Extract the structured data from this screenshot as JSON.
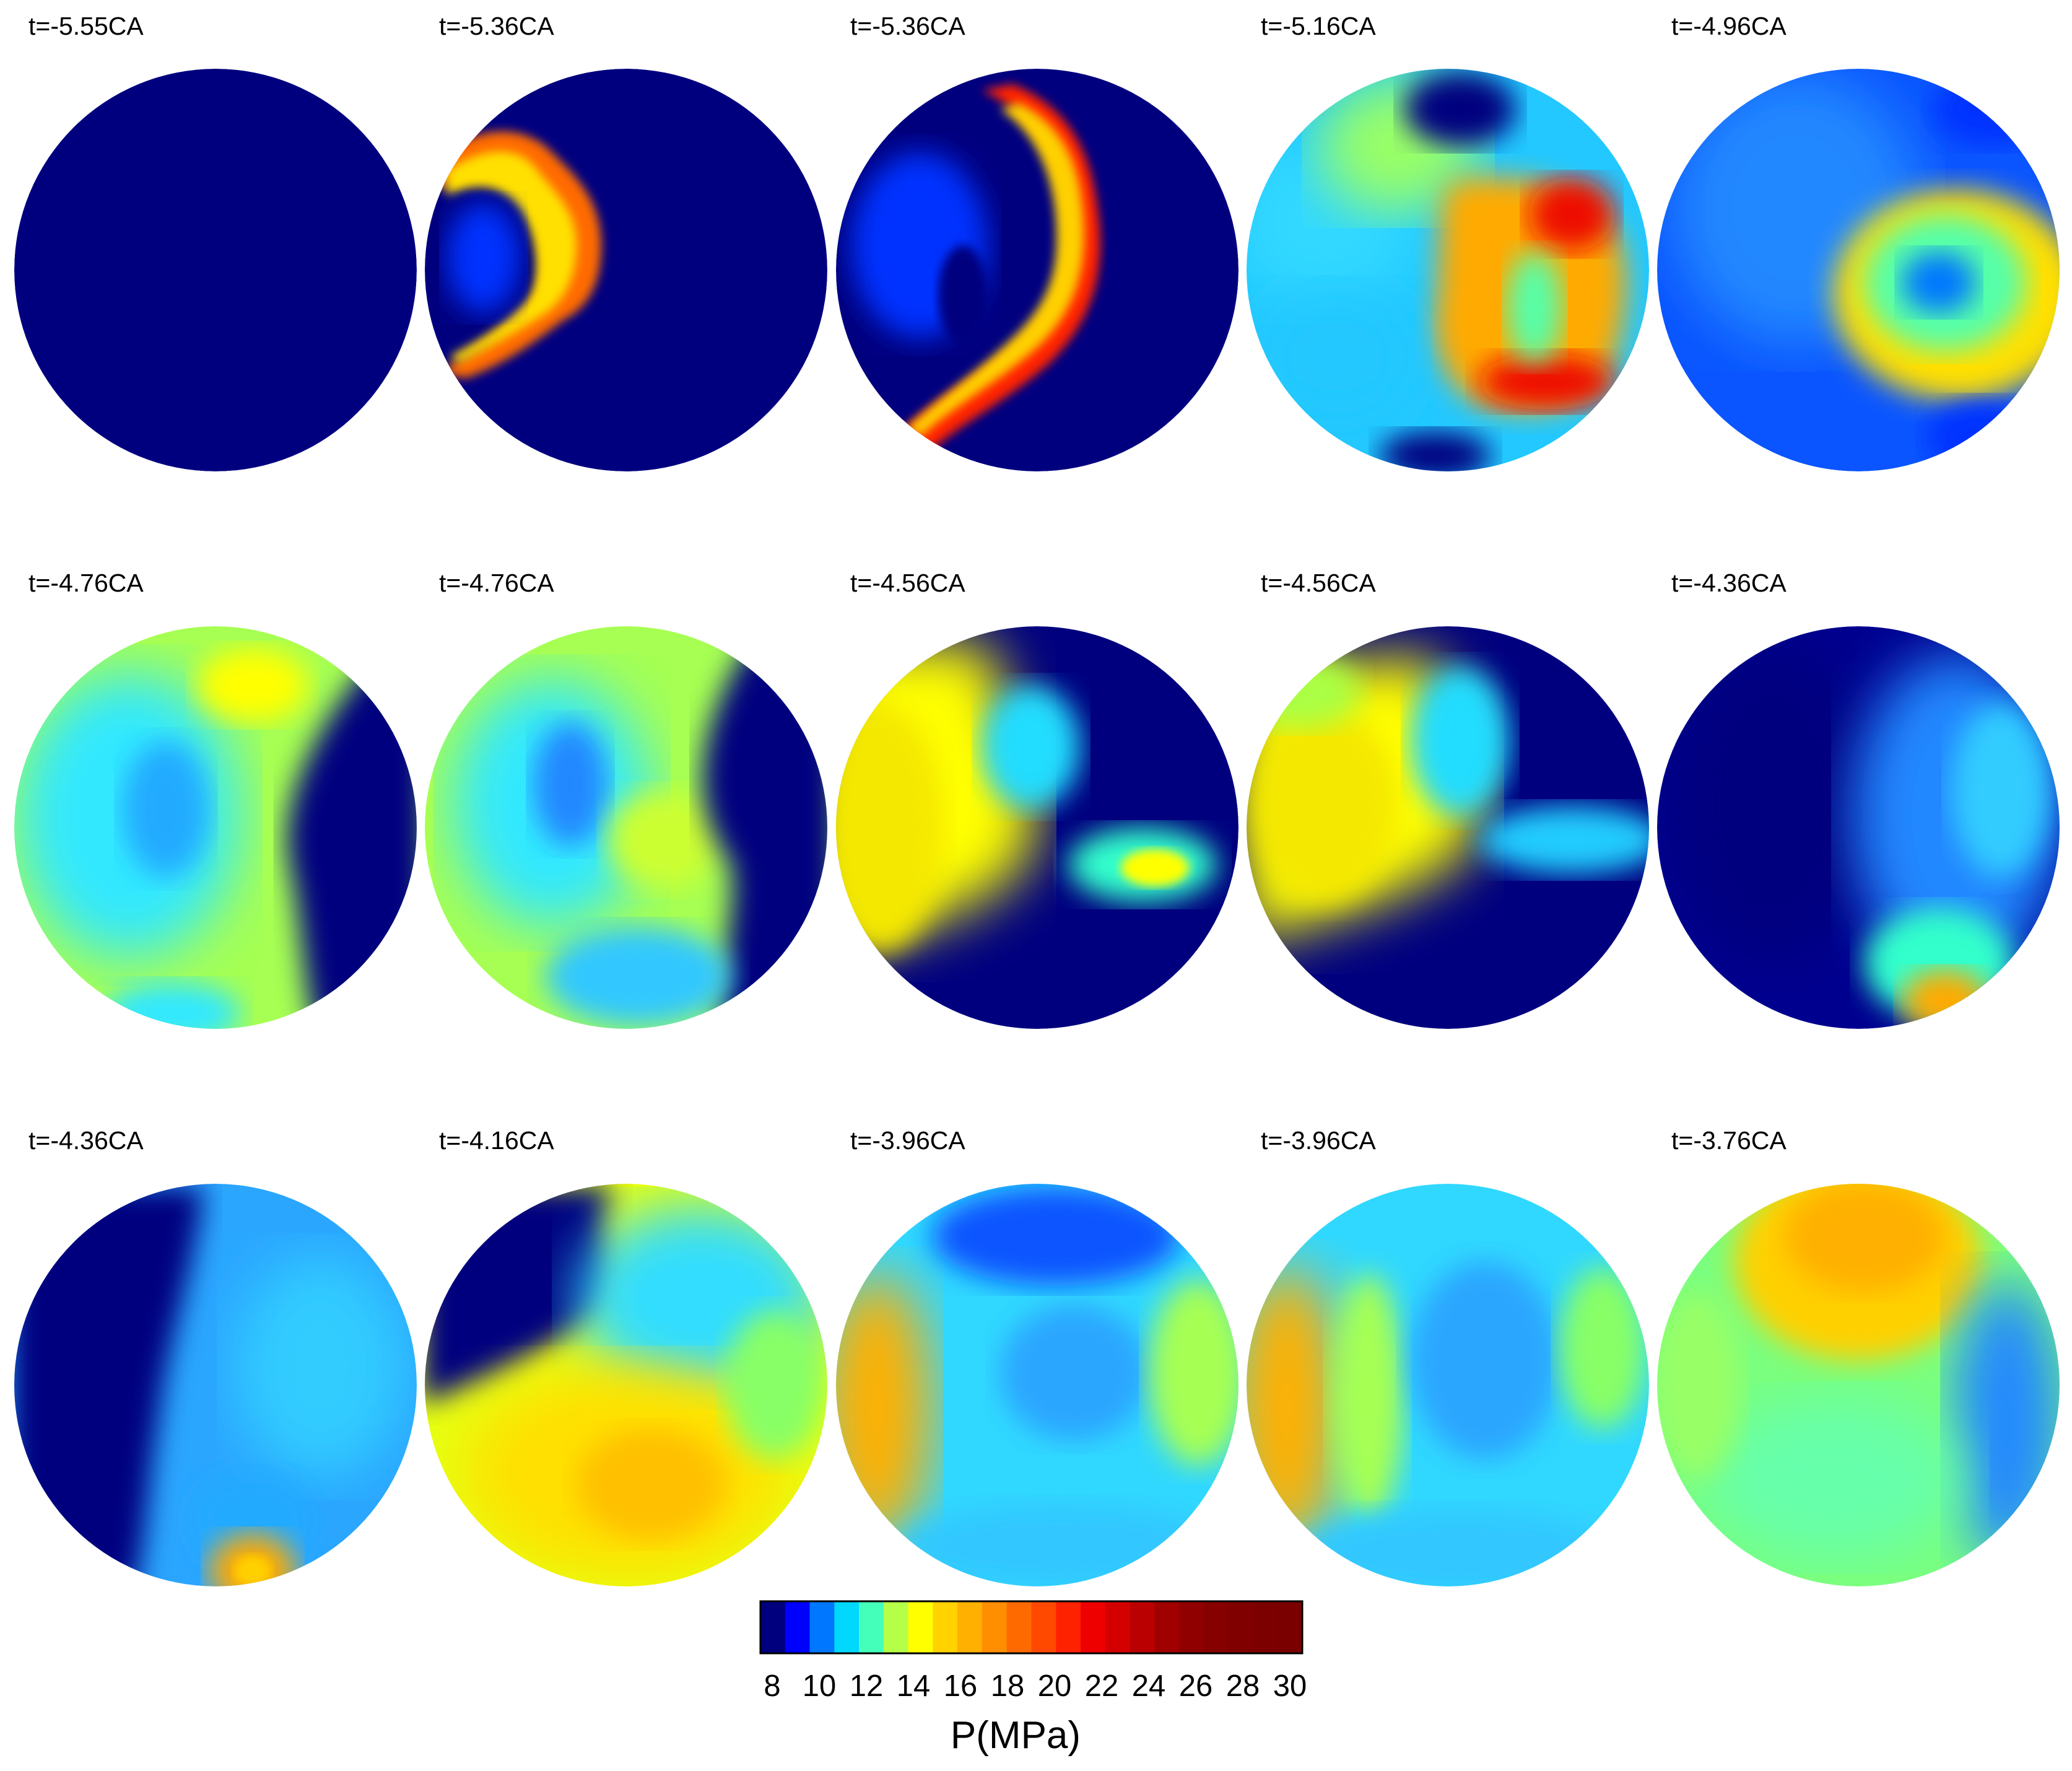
{
  "frames": [
    {
      "label": "t=-5.55CA",
      "fill": "#00007f",
      "hot": []
    },
    {
      "label": "t=-5.36CA",
      "fill": "#00007f",
      "hot": [
        {
          "kind": "ring",
          "color": "#ff8c00"
        }
      ]
    },
    {
      "label": "t=-5.36CA",
      "fill": "#00007f",
      "hot": [
        {
          "kind": "ring",
          "color": "#ff2a00"
        }
      ]
    },
    {
      "label": "t=-5.16CA",
      "fill": "#22c8ff",
      "hot": [
        {
          "kind": "ring",
          "color": "#ff6a00"
        }
      ]
    },
    {
      "label": "t=-4.96CA",
      "fill": "#0a55ff",
      "hot": [
        {
          "kind": "ring",
          "color": "#ffd000"
        }
      ]
    },
    {
      "label": "t=-4.76CA",
      "fill": "#a6ff52",
      "hot": [
        {
          "kind": "dark-right",
          "color": "#00007f"
        }
      ]
    },
    {
      "label": "t=-4.76CA",
      "fill": "#a6ff52",
      "hot": [
        {
          "kind": "dark-right",
          "color": "#00007f"
        }
      ]
    },
    {
      "label": "t=-4.56CA",
      "fill": "#00007f",
      "hot": [
        {
          "kind": "warm-left",
          "color": "#f4f000"
        }
      ]
    },
    {
      "label": "t=-4.56CA",
      "fill": "#00007f",
      "hot": [
        {
          "kind": "warm-left",
          "color": "#f4f000"
        }
      ]
    },
    {
      "label": "t=-4.36CA",
      "fill": "#00008f",
      "hot": [
        {
          "kind": "spot-bottom",
          "color": "#ffaa00"
        }
      ]
    },
    {
      "label": "t=-4.36CA",
      "fill": "#2aa6ff",
      "hot": [
        {
          "kind": "dark-left",
          "color": "#00007f"
        }
      ]
    },
    {
      "label": "t=-4.16CA",
      "fill": "#e6ff10",
      "hot": [
        {
          "kind": "dark-left",
          "color": "#00007f"
        }
      ]
    },
    {
      "label": "t=-3.96CA",
      "fill": "#30d8ff",
      "hot": [
        {
          "kind": "warm-left",
          "color": "#ffb000"
        }
      ]
    },
    {
      "label": "t=-3.96CA",
      "fill": "#30d8ff",
      "hot": [
        {
          "kind": "warm-left",
          "color": "#ffb000"
        }
      ]
    },
    {
      "label": "t=-3.76CA",
      "fill": "#7aff7e",
      "hot": [
        {
          "kind": "warm-top",
          "color": "#ffb400"
        }
      ]
    }
  ],
  "colorbar": {
    "title": "P(MPa)",
    "tick_labels": [
      "8",
      "10",
      "12",
      "14",
      "16",
      "18",
      "20",
      "22",
      "24",
      "26",
      "28",
      "30"
    ],
    "colors": [
      "#00007f",
      "#0000ff",
      "#0077ff",
      "#00d8ff",
      "#44ffba",
      "#b6ff48",
      "#ffff00",
      "#ffd200",
      "#ffb000",
      "#ff8e00",
      "#ff6a00",
      "#ff4800",
      "#ff2200",
      "#ee0000",
      "#d40000",
      "#ba0000",
      "#a00000",
      "#900000",
      "#860000",
      "#800000",
      "#7c0000",
      "#7a0000"
    ]
  }
}
